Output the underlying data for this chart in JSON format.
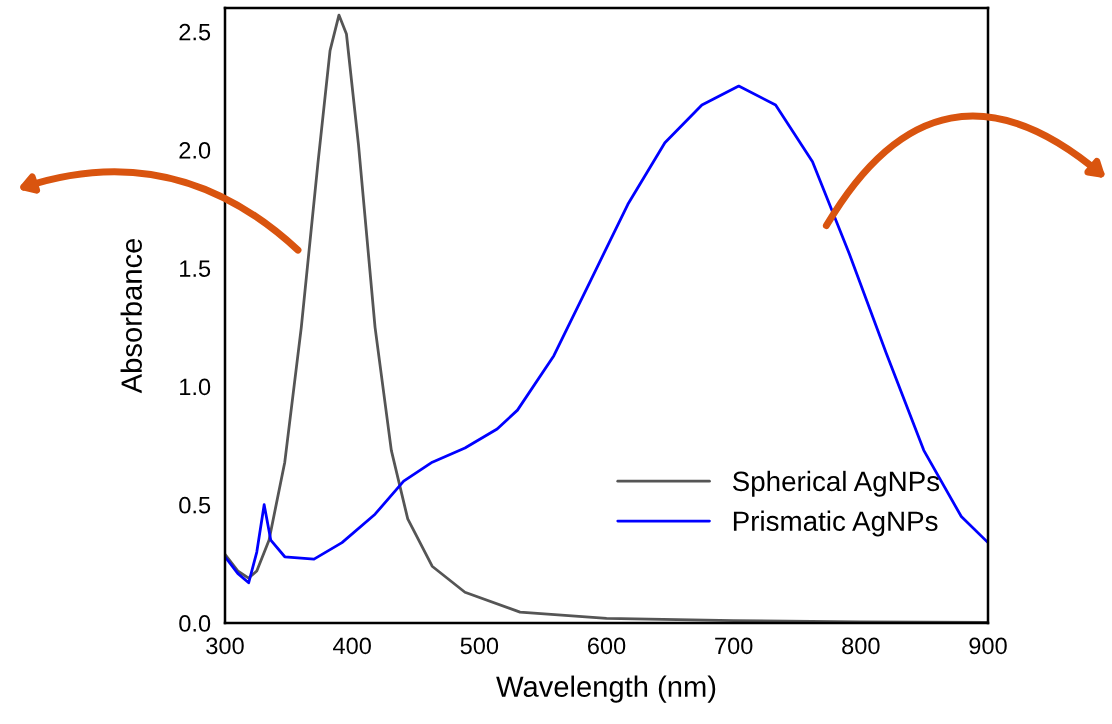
{
  "chart_data": {
    "type": "line",
    "xlabel": "Wavelength (nm)",
    "ylabel": "Absorbance",
    "xlim": [
      300,
      900
    ],
    "xticks": [
      300,
      400,
      500,
      600,
      700,
      800,
      900
    ],
    "ylim": [
      0,
      2.6
    ],
    "yticks": [
      {
        "value": 0,
        "label": "0.0"
      },
      {
        "value": 0.5,
        "label": "0.5"
      },
      {
        "value": 1,
        "label": "1.0"
      },
      {
        "value": 1.5,
        "label": "1.5"
      },
      {
        "value": 2,
        "label": "2.0"
      },
      {
        "value": 2.5,
        "label": "2.5"
      }
    ],
    "grid": false,
    "legend": "bottom right",
    "marker": "none",
    "line_style": "solid",
    "series": [
      {
        "name": "Spherical AgNPs",
        "color": "#555555",
        "x": [
          300,
          310,
          318.6,
          325,
          334.6,
          347,
          360,
          373,
          382.6,
          389.6,
          395.5,
          405,
          418,
          430.8,
          443.7,
          462.9,
          488.7,
          532,
          600,
          700,
          800,
          900
        ],
        "values": [
          0.29,
          0.22,
          0.19,
          0.22,
          0.35,
          0.68,
          1.25,
          1.94,
          2.42,
          2.57,
          2.49,
          2.02,
          1.25,
          0.73,
          0.44,
          0.24,
          0.13,
          0.046,
          0.02,
          0.01,
          0.005,
          0.003
        ]
      },
      {
        "name": "Prismatic AgNPs",
        "color": "#0000ff",
        "x": [
          300,
          310,
          318.6,
          325,
          330.8,
          336,
          347,
          370,
          392,
          418,
          440.5,
          463,
          488.7,
          514,
          530,
          558.6,
          587.7,
          616.8,
          645.9,
          675,
          704,
          733,
          762,
          791,
          820,
          849.5,
          879,
          900
        ],
        "values": [
          0.28,
          0.21,
          0.17,
          0.3,
          0.5,
          0.35,
          0.28,
          0.27,
          0.34,
          0.46,
          0.6,
          0.68,
          0.74,
          0.82,
          0.9,
          1.13,
          1.45,
          1.77,
          2.03,
          2.19,
          2.27,
          2.19,
          1.95,
          1.56,
          1.14,
          0.73,
          0.45,
          0.34
        ]
      }
    ]
  }
}
